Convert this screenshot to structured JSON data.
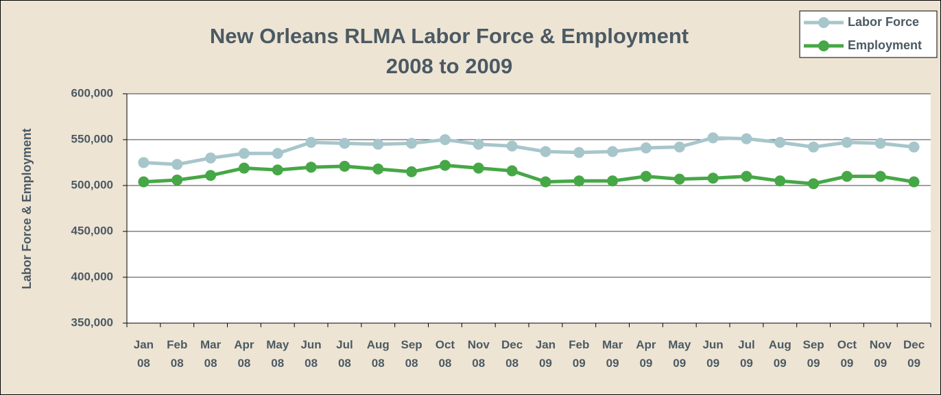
{
  "chart_data": {
    "type": "line",
    "title": "New Orleans RLMA Labor Force & Employment",
    "subtitle": "2008 to 2009",
    "y_label": "Labor Force & Employment",
    "categories": [
      "Jan 08",
      "Feb 08",
      "Mar 08",
      "Apr 08",
      "May 08",
      "Jun 08",
      "Jul 08",
      "Aug 08",
      "Sep 08",
      "Oct 08",
      "Nov 08",
      "Dec 08",
      "Jan 09",
      "Feb 09",
      "Mar 09",
      "Apr 09",
      "May 09",
      "Jun 09",
      "Jul 09",
      "Aug 09",
      "Sep 09",
      "Oct 09",
      "Nov 09",
      "Dec 09"
    ],
    "series": [
      {
        "name": "Labor Force",
        "color": "#a7c6cc",
        "values": [
          525000,
          523000,
          530000,
          535000,
          535000,
          547000,
          546000,
          545000,
          546000,
          550000,
          545000,
          543000,
          537000,
          536000,
          537000,
          541000,
          542000,
          552000,
          551000,
          547000,
          542000,
          547000,
          546000,
          542000
        ]
      },
      {
        "name": "Employment",
        "color": "#46a746",
        "values": [
          504000,
          506000,
          511000,
          519000,
          517000,
          520000,
          521000,
          518000,
          515000,
          522000,
          519000,
          516000,
          504000,
          505000,
          505000,
          510000,
          507000,
          508000,
          510000,
          505000,
          502000,
          510000,
          510000,
          504000
        ]
      }
    ],
    "ylim": [
      350000,
      600000
    ],
    "yticks": [
      {
        "value": 350000,
        "label": "350,000"
      },
      {
        "value": 400000,
        "label": "400,000"
      },
      {
        "value": 450000,
        "label": "450,000"
      },
      {
        "value": 500000,
        "label": "500,000"
      },
      {
        "value": 550000,
        "label": "550,000"
      },
      {
        "value": 600000,
        "label": "600,000"
      }
    ],
    "grid": true,
    "legend": "top-right"
  }
}
